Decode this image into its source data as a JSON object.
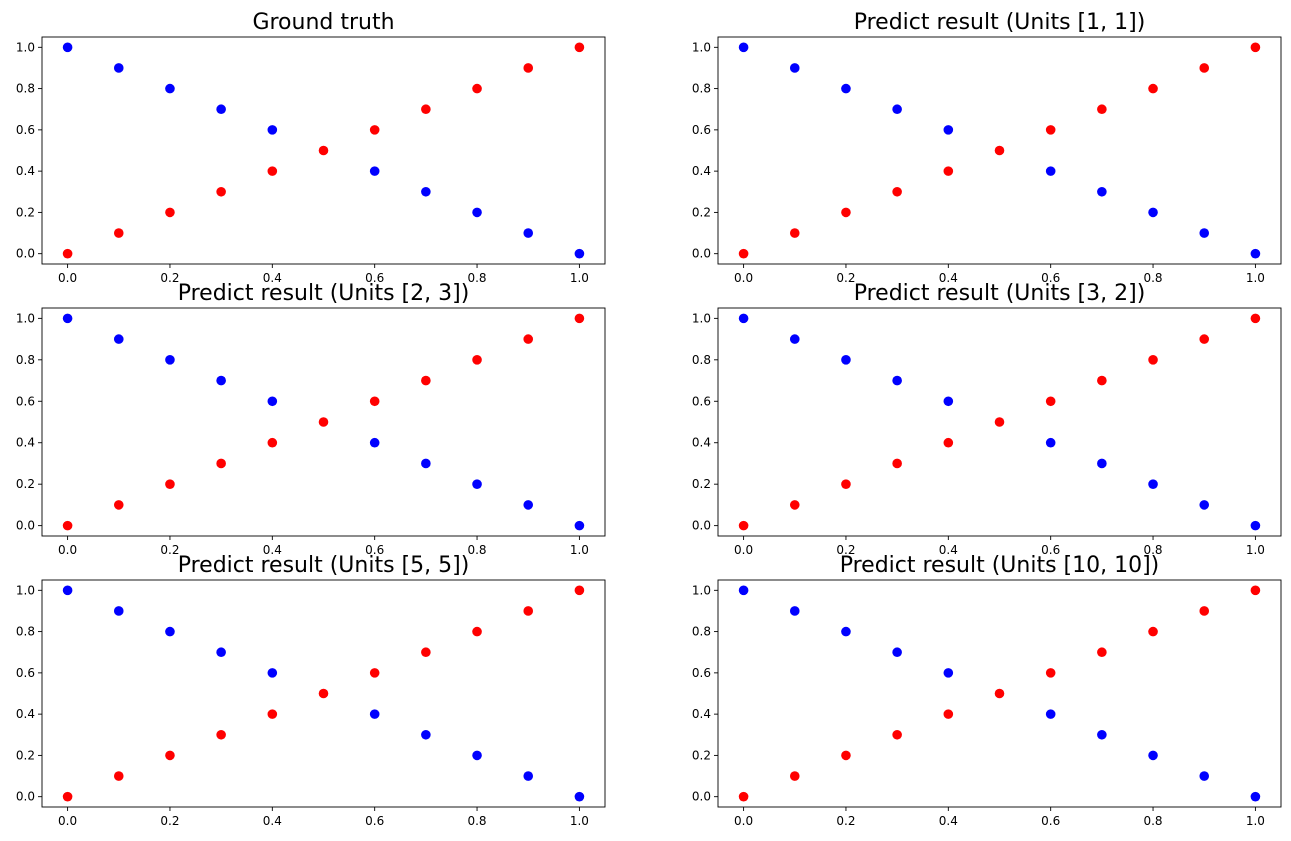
{
  "figure": {
    "colors": {
      "class_0": "#0000ff",
      "class_1": "#ff0000"
    }
  },
  "chart_data": [
    {
      "type": "scatter",
      "title": "Ground truth",
      "xlim": [
        -0.05,
        1.05
      ],
      "ylim": [
        -0.05,
        1.05
      ],
      "xticks": [
        "0.0",
        "0.2",
        "0.4",
        "0.6",
        "0.8",
        "1.0"
      ],
      "yticks": [
        "0.0",
        "0.2",
        "0.4",
        "0.6",
        "0.8",
        "1.0"
      ],
      "series": [
        {
          "color": "#0000ff",
          "points": [
            [
              0,
              1
            ],
            [
              0.1,
              0.9
            ],
            [
              0.2,
              0.8
            ],
            [
              0.3,
              0.7
            ],
            [
              0.4,
              0.6
            ],
            [
              0.6,
              0.4
            ],
            [
              0.7,
              0.3
            ],
            [
              0.8,
              0.2
            ],
            [
              0.9,
              0.1
            ],
            [
              1,
              0
            ]
          ]
        },
        {
          "color": "#ff0000",
          "points": [
            [
              0,
              0
            ],
            [
              0.1,
              0.1
            ],
            [
              0.2,
              0.2
            ],
            [
              0.3,
              0.3
            ],
            [
              0.4,
              0.4
            ],
            [
              0.5,
              0.5
            ],
            [
              0.6,
              0.6
            ],
            [
              0.7,
              0.7
            ],
            [
              0.8,
              0.8
            ],
            [
              0.9,
              0.9
            ],
            [
              1,
              1
            ]
          ]
        }
      ]
    },
    {
      "type": "scatter",
      "title": "Predict result (Units [1, 1])",
      "xlim": [
        -0.05,
        1.05
      ],
      "ylim": [
        -0.05,
        1.05
      ],
      "xticks": [
        "0.0",
        "0.2",
        "0.4",
        "0.6",
        "0.8",
        "1.0"
      ],
      "yticks": [
        "0.0",
        "0.2",
        "0.4",
        "0.6",
        "0.8",
        "1.0"
      ],
      "series": [
        {
          "color": "#0000ff",
          "points": [
            [
              0,
              1
            ],
            [
              0.1,
              0.9
            ],
            [
              0.2,
              0.8
            ],
            [
              0.3,
              0.7
            ],
            [
              0.4,
              0.6
            ],
            [
              0.6,
              0.4
            ],
            [
              0.7,
              0.3
            ],
            [
              0.8,
              0.2
            ],
            [
              0.9,
              0.1
            ],
            [
              1,
              0
            ]
          ]
        },
        {
          "color": "#ff0000",
          "points": [
            [
              0,
              0
            ],
            [
              0.1,
              0.1
            ],
            [
              0.2,
              0.2
            ],
            [
              0.3,
              0.3
            ],
            [
              0.4,
              0.4
            ],
            [
              0.5,
              0.5
            ],
            [
              0.6,
              0.6
            ],
            [
              0.7,
              0.7
            ],
            [
              0.8,
              0.8
            ],
            [
              0.9,
              0.9
            ],
            [
              1,
              1
            ]
          ]
        }
      ]
    },
    {
      "type": "scatter",
      "title": "Predict result (Units [2, 3])",
      "xlim": [
        -0.05,
        1.05
      ],
      "ylim": [
        -0.05,
        1.05
      ],
      "xticks": [
        "0.0",
        "0.2",
        "0.4",
        "0.6",
        "0.8",
        "1.0"
      ],
      "yticks": [
        "0.0",
        "0.2",
        "0.4",
        "0.6",
        "0.8",
        "1.0"
      ],
      "series": [
        {
          "color": "#0000ff",
          "points": [
            [
              0,
              1
            ],
            [
              0.1,
              0.9
            ],
            [
              0.2,
              0.8
            ],
            [
              0.3,
              0.7
            ],
            [
              0.4,
              0.6
            ],
            [
              0.6,
              0.4
            ],
            [
              0.7,
              0.3
            ],
            [
              0.8,
              0.2
            ],
            [
              0.9,
              0.1
            ],
            [
              1,
              0
            ]
          ]
        },
        {
          "color": "#ff0000",
          "points": [
            [
              0,
              0
            ],
            [
              0.1,
              0.1
            ],
            [
              0.2,
              0.2
            ],
            [
              0.3,
              0.3
            ],
            [
              0.4,
              0.4
            ],
            [
              0.5,
              0.5
            ],
            [
              0.6,
              0.6
            ],
            [
              0.7,
              0.7
            ],
            [
              0.8,
              0.8
            ],
            [
              0.9,
              0.9
            ],
            [
              1,
              1
            ]
          ]
        }
      ]
    },
    {
      "type": "scatter",
      "title": "Predict result (Units [3, 2])",
      "xlim": [
        -0.05,
        1.05
      ],
      "ylim": [
        -0.05,
        1.05
      ],
      "xticks": [
        "0.0",
        "0.2",
        "0.4",
        "0.6",
        "0.8",
        "1.0"
      ],
      "yticks": [
        "0.0",
        "0.2",
        "0.4",
        "0.6",
        "0.8",
        "1.0"
      ],
      "series": [
        {
          "color": "#0000ff",
          "points": [
            [
              0,
              1
            ],
            [
              0.1,
              0.9
            ],
            [
              0.2,
              0.8
            ],
            [
              0.3,
              0.7
            ],
            [
              0.4,
              0.6
            ],
            [
              0.6,
              0.4
            ],
            [
              0.7,
              0.3
            ],
            [
              0.8,
              0.2
            ],
            [
              0.9,
              0.1
            ],
            [
              1,
              0
            ]
          ]
        },
        {
          "color": "#ff0000",
          "points": [
            [
              0,
              0
            ],
            [
              0.1,
              0.1
            ],
            [
              0.2,
              0.2
            ],
            [
              0.3,
              0.3
            ],
            [
              0.4,
              0.4
            ],
            [
              0.5,
              0.5
            ],
            [
              0.6,
              0.6
            ],
            [
              0.7,
              0.7
            ],
            [
              0.8,
              0.8
            ],
            [
              0.9,
              0.9
            ],
            [
              1,
              1
            ]
          ]
        }
      ]
    },
    {
      "type": "scatter",
      "title": "Predict result (Units [5, 5])",
      "xlim": [
        -0.05,
        1.05
      ],
      "ylim": [
        -0.05,
        1.05
      ],
      "xticks": [
        "0.0",
        "0.2",
        "0.4",
        "0.6",
        "0.8",
        "1.0"
      ],
      "yticks": [
        "0.0",
        "0.2",
        "0.4",
        "0.6",
        "0.8",
        "1.0"
      ],
      "series": [
        {
          "color": "#0000ff",
          "points": [
            [
              0,
              1
            ],
            [
              0.1,
              0.9
            ],
            [
              0.2,
              0.8
            ],
            [
              0.3,
              0.7
            ],
            [
              0.4,
              0.6
            ],
            [
              0.6,
              0.4
            ],
            [
              0.7,
              0.3
            ],
            [
              0.8,
              0.2
            ],
            [
              0.9,
              0.1
            ],
            [
              1,
              0
            ]
          ]
        },
        {
          "color": "#ff0000",
          "points": [
            [
              0,
              0
            ],
            [
              0.1,
              0.1
            ],
            [
              0.2,
              0.2
            ],
            [
              0.3,
              0.3
            ],
            [
              0.4,
              0.4
            ],
            [
              0.5,
              0.5
            ],
            [
              0.6,
              0.6
            ],
            [
              0.7,
              0.7
            ],
            [
              0.8,
              0.8
            ],
            [
              0.9,
              0.9
            ],
            [
              1,
              1
            ]
          ]
        }
      ]
    },
    {
      "type": "scatter",
      "title": "Predict result (Units [10, 10])",
      "xlim": [
        -0.05,
        1.05
      ],
      "ylim": [
        -0.05,
        1.05
      ],
      "xticks": [
        "0.0",
        "0.2",
        "0.4",
        "0.6",
        "0.8",
        "1.0"
      ],
      "yticks": [
        "0.0",
        "0.2",
        "0.4",
        "0.6",
        "0.8",
        "1.0"
      ],
      "series": [
        {
          "color": "#0000ff",
          "points": [
            [
              0,
              1
            ],
            [
              0.1,
              0.9
            ],
            [
              0.2,
              0.8
            ],
            [
              0.3,
              0.7
            ],
            [
              0.4,
              0.6
            ],
            [
              0.6,
              0.4
            ],
            [
              0.7,
              0.3
            ],
            [
              0.8,
              0.2
            ],
            [
              0.9,
              0.1
            ],
            [
              1,
              0
            ]
          ]
        },
        {
          "color": "#ff0000",
          "points": [
            [
              0,
              0
            ],
            [
              0.1,
              0.1
            ],
            [
              0.2,
              0.2
            ],
            [
              0.3,
              0.3
            ],
            [
              0.4,
              0.4
            ],
            [
              0.5,
              0.5
            ],
            [
              0.6,
              0.6
            ],
            [
              0.7,
              0.7
            ],
            [
              0.8,
              0.8
            ],
            [
              0.9,
              0.9
            ],
            [
              1,
              1
            ]
          ]
        }
      ]
    }
  ]
}
